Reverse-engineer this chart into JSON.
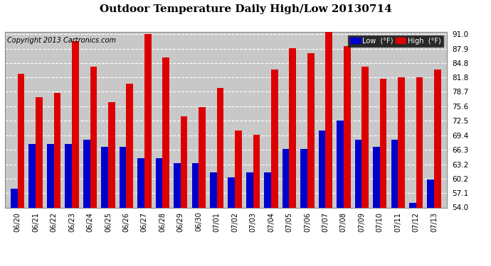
{
  "title": "Outdoor Temperature Daily High/Low 20130714",
  "copyright": "Copyright 2013 Cartronics.com",
  "legend_low": "Low  (°F)",
  "legend_high": "High  (°F)",
  "dates": [
    "06/20",
    "06/21",
    "06/22",
    "06/23",
    "06/24",
    "06/25",
    "06/26",
    "06/27",
    "06/28",
    "06/29",
    "06/30",
    "07/01",
    "07/02",
    "07/03",
    "07/04",
    "07/05",
    "07/06",
    "07/07",
    "07/08",
    "07/09",
    "07/10",
    "07/11",
    "07/12",
    "07/13"
  ],
  "highs": [
    82.5,
    77.5,
    78.5,
    89.5,
    84.0,
    76.5,
    80.5,
    91.0,
    86.0,
    73.5,
    75.5,
    79.5,
    70.5,
    69.5,
    83.5,
    88.0,
    87.0,
    91.5,
    88.5,
    84.0,
    81.5,
    81.8,
    81.8,
    83.5
  ],
  "lows": [
    58.0,
    67.5,
    67.5,
    67.5,
    68.5,
    67.0,
    67.0,
    64.5,
    64.5,
    63.5,
    63.5,
    61.5,
    60.5,
    61.5,
    61.5,
    66.5,
    66.5,
    70.5,
    72.5,
    68.5,
    67.0,
    68.5,
    55.0,
    60.0
  ],
  "ymin": 54.0,
  "ymax": 91.5,
  "yticks": [
    54.0,
    57.1,
    60.2,
    63.2,
    66.3,
    69.4,
    72.5,
    75.6,
    78.7,
    81.8,
    84.8,
    87.9,
    91.0
  ],
  "bar_width": 0.38,
  "low_color": "#0000cc",
  "high_color": "#dd0000",
  "bg_color": "#ffffff",
  "plot_bg_color": "#c8c8c8",
  "grid_color": "#ffffff",
  "title_fontsize": 11,
  "copyright_fontsize": 7
}
